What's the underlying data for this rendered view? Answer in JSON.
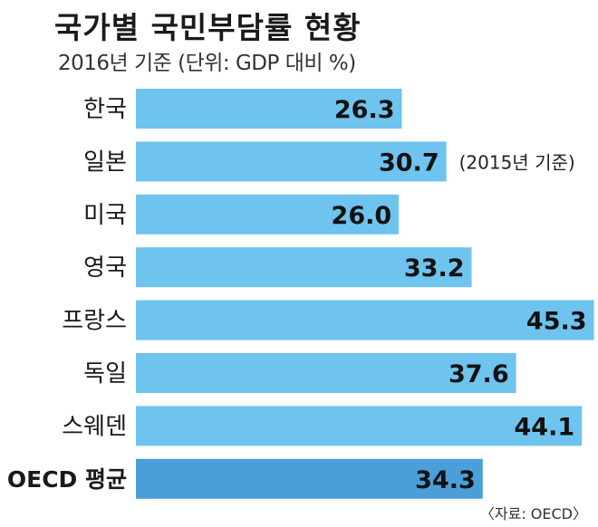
{
  "title": "국가별 국민부담률 현황",
  "subtitle": "2016년 기준 (단위: GDP 대비 %)",
  "source": "〈자료: OECD〉",
  "colors": {
    "bar": "#6ec3ef",
    "bar_highlight": "#4a9fd8"
  },
  "chart_data": {
    "type": "bar",
    "orientation": "horizontal",
    "categories": [
      "한국",
      "일본",
      "미국",
      "영국",
      "프랑스",
      "독일",
      "스웨덴",
      "OECD 평균"
    ],
    "values": [
      26.3,
      30.7,
      26.0,
      33.2,
      45.3,
      37.6,
      44.1,
      34.3
    ],
    "value_labels": [
      "26.3",
      "30.7",
      "26.0",
      "33.2",
      "45.3",
      "37.6",
      "44.1",
      "34.3"
    ],
    "annotations": [
      {
        "category": "일본",
        "text": "(2015년 기준)"
      }
    ],
    "highlight_category": "OECD 평균",
    "title": "국가별 국민부담률 현황",
    "subtitle": "2016년 기준 (단위: GDP 대비 %)",
    "xlabel": "",
    "ylabel": "",
    "grid": false,
    "legend": "none"
  }
}
